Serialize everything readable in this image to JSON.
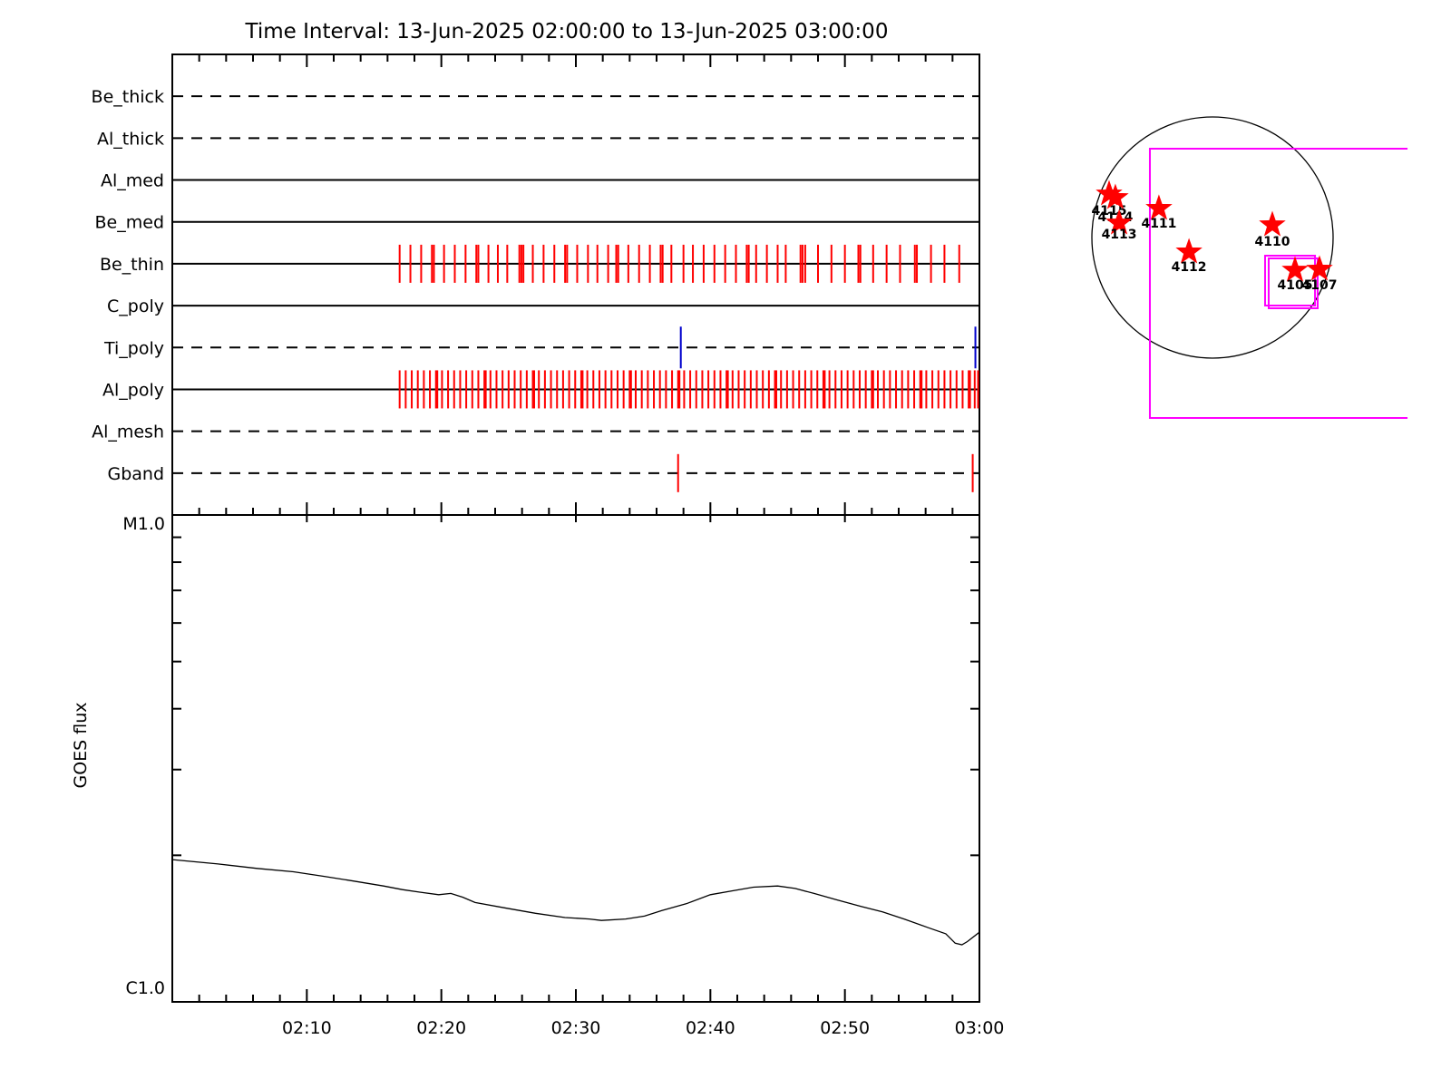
{
  "title": "Time Interval: 13-Jun-2025 02:00:00 to 13-Jun-2025 03:00:00",
  "colors": {
    "tick_red": "#ff0000",
    "tick_blue": "#0000cc",
    "fov_magenta": "#ff00ff",
    "axis_black": "#000000"
  },
  "time_axis": {
    "range_minutes": [
      0,
      60
    ],
    "major_tick_minutes": [
      10,
      20,
      30,
      40,
      50,
      60
    ],
    "minor_step_minutes": 2,
    "tick_labels": [
      "02:10",
      "02:20",
      "02:30",
      "02:40",
      "02:50",
      "03:00"
    ]
  },
  "chart_data": [
    {
      "type": "timeline",
      "name": "instrument-filter-observation-timeline",
      "rows": [
        {
          "label": "Be_thick",
          "linestyle": "dashed",
          "tick_color": null,
          "tick_times_min": []
        },
        {
          "label": "Al_thick",
          "linestyle": "dashed",
          "tick_color": null,
          "tick_times_min": []
        },
        {
          "label": "Al_med",
          "linestyle": "solid",
          "tick_color": null,
          "tick_times_min": []
        },
        {
          "label": "Be_med",
          "linestyle": "solid",
          "tick_color": null,
          "tick_times_min": []
        },
        {
          "label": "Be_thin",
          "linestyle": "solid",
          "tick_color": "#ff0000",
          "tick_times_min": [
            16.9,
            17.7,
            18.5,
            19.3,
            19.45,
            20.2,
            21.0,
            21.8,
            22.6,
            22.75,
            23.5,
            24.2,
            24.9,
            25.8,
            25.95,
            26.1,
            26.8,
            27.6,
            28.4,
            29.2,
            29.35,
            30.1,
            30.9,
            31.6,
            32.4,
            33.0,
            33.15,
            33.9,
            34.7,
            35.5,
            36.3,
            36.45,
            37.1,
            38.0,
            38.7,
            39.5,
            40.3,
            41.1,
            41.9,
            42.7,
            42.85,
            43.4,
            44.2,
            45.0,
            45.6,
            46.7,
            46.85,
            47.05,
            48.0,
            49.0,
            50.0,
            51.0,
            51.15,
            52.1,
            53.1,
            54.1,
            55.2,
            55.35,
            56.4,
            57.4,
            58.5
          ]
        },
        {
          "label": "C_poly",
          "linestyle": "solid",
          "tick_color": null,
          "tick_times_min": []
        },
        {
          "label": "Ti_poly",
          "linestyle": "dashed",
          "tick_color": "#0000cc",
          "tick_times_min": [
            37.8,
            59.7
          ]
        },
        {
          "label": "Al_poly",
          "linestyle": "solid",
          "tick_color": "#ff0000",
          "tick_times_min": [
            16.9,
            17.35,
            17.8,
            18.25,
            18.7,
            19.15,
            19.6,
            19.7,
            20.05,
            20.5,
            20.95,
            21.4,
            21.85,
            22.3,
            22.75,
            23.2,
            23.3,
            23.65,
            24.1,
            24.55,
            25.0,
            25.45,
            25.9,
            26.35,
            26.8,
            26.9,
            27.25,
            27.7,
            28.15,
            28.6,
            29.05,
            29.5,
            29.95,
            30.4,
            30.5,
            30.85,
            31.3,
            31.75,
            32.2,
            32.65,
            33.1,
            33.55,
            34.0,
            34.1,
            34.45,
            34.9,
            35.35,
            35.8,
            36.25,
            36.7,
            37.15,
            37.6,
            37.7,
            38.05,
            38.5,
            38.95,
            39.4,
            39.85,
            40.3,
            40.75,
            41.2,
            41.3,
            41.65,
            42.1,
            42.55,
            43.0,
            43.45,
            43.9,
            44.35,
            44.8,
            44.9,
            45.25,
            45.7,
            46.15,
            46.6,
            47.05,
            47.5,
            47.95,
            48.4,
            48.5,
            48.85,
            49.3,
            49.75,
            50.2,
            50.65,
            51.1,
            51.55,
            52.0,
            52.1,
            52.45,
            52.9,
            53.35,
            53.8,
            54.25,
            54.7,
            55.15,
            55.6,
            55.7,
            56.05,
            56.5,
            56.95,
            57.4,
            57.85,
            58.3,
            58.75,
            59.2,
            59.3,
            59.65,
            59.9
          ]
        },
        {
          "label": "Al_mesh",
          "linestyle": "dashed",
          "tick_color": null,
          "tick_times_min": []
        },
        {
          "label": "Gband",
          "linestyle": "dashed",
          "tick_color": "#ff0000",
          "tick_times_min": [
            37.6,
            59.5
          ]
        }
      ]
    },
    {
      "type": "line",
      "name": "goes-xray-flux",
      "ylabel": "GOES flux",
      "yaxis": {
        "scale": "log",
        "top_label": "M1.0",
        "bottom_label": "C1.0",
        "minor_tick_levels_c": [
          2,
          3,
          4,
          5,
          6,
          7,
          8,
          9
        ]
      },
      "series": [
        {
          "name": "GOES flux",
          "t_min": [
            0,
            3.4,
            6.3,
            9.0,
            11.3,
            13.5,
            15.7,
            17.1,
            18.4,
            19.8,
            20.7,
            21.6,
            22.5,
            24.7,
            27.0,
            29.2,
            31.0,
            31.9,
            33.7,
            35.1,
            36.4,
            38.2,
            40.0,
            41.6,
            43.2,
            45.0,
            46.3,
            47.7,
            49.4,
            51.2,
            52.8,
            54.4,
            56.2,
            57.5,
            58.2,
            58.7,
            59.1,
            60.0
          ],
          "c_level": [
            1.96,
            1.92,
            1.88,
            1.85,
            1.81,
            1.77,
            1.73,
            1.7,
            1.68,
            1.66,
            1.67,
            1.64,
            1.6,
            1.56,
            1.52,
            1.49,
            1.48,
            1.47,
            1.48,
            1.5,
            1.54,
            1.59,
            1.66,
            1.69,
            1.72,
            1.73,
            1.71,
            1.67,
            1.62,
            1.57,
            1.53,
            1.48,
            1.42,
            1.38,
            1.32,
            1.31,
            1.33,
            1.39
          ]
        }
      ]
    },
    {
      "type": "scatter",
      "name": "solar-disk-active-regions",
      "regions": [
        {
          "noaa": "4115",
          "x_rsun": -0.857,
          "y_rsun": -0.361,
          "label_dy": 17
        },
        {
          "noaa": "4114",
          "x_rsun": -0.805,
          "y_rsun": -0.331,
          "label_dy": 20
        },
        {
          "noaa": "4113",
          "x_rsun": -0.774,
          "y_rsun": -0.12,
          "label_dy": 11
        },
        {
          "noaa": "4111",
          "x_rsun": -0.444,
          "y_rsun": -0.241,
          "label_dy": 15
        },
        {
          "noaa": "4110",
          "x_rsun": 0.496,
          "y_rsun": -0.105,
          "label_dy": 17
        },
        {
          "noaa": "4112",
          "x_rsun": -0.195,
          "y_rsun": 0.12,
          "label_dy": 15
        },
        {
          "noaa": "4105",
          "x_rsun": 0.684,
          "y_rsun": 0.271,
          "label_dy": 15
        },
        {
          "noaa": "4107",
          "x_rsun": 0.887,
          "y_rsun": 0.263,
          "label_dy": 16
        }
      ],
      "fov_boxes_rsun": [
        {
          "x0": -0.519,
          "y0": -0.737,
          "x1": 1.617,
          "y1": 1.496,
          "open_right": true
        },
        {
          "x0": 0.436,
          "y0": 0.15,
          "x1": 0.85,
          "y1": 0.564,
          "open_right": false
        },
        {
          "x0": 0.466,
          "y0": 0.173,
          "x1": 0.872,
          "y1": 0.586,
          "open_right": false
        }
      ]
    }
  ]
}
